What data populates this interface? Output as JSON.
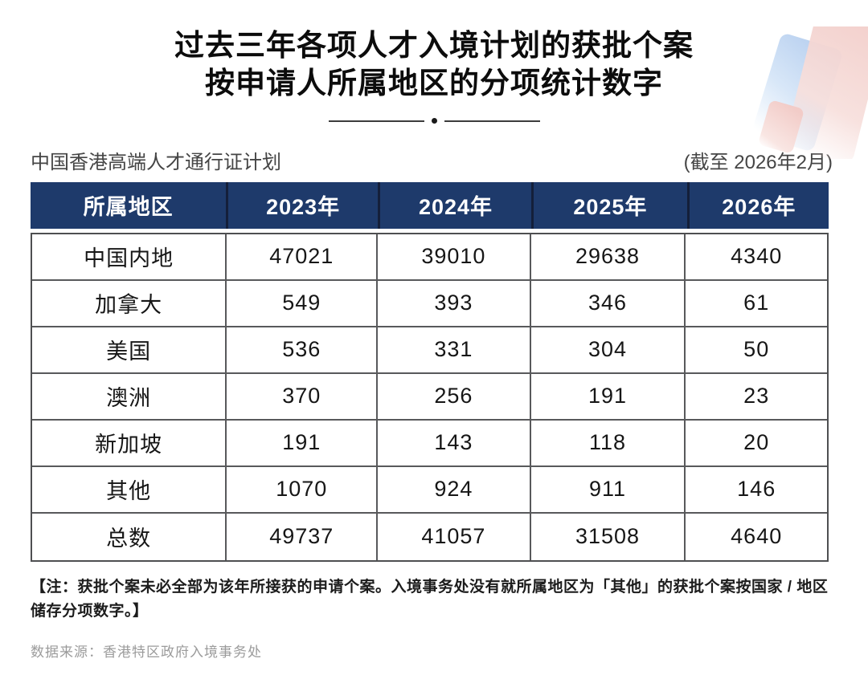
{
  "page": {
    "title_line1": "过去三年各项人才入境计划的获批个案",
    "title_line2": "按申请人所属地区的分项统计数字",
    "scheme_name": "中国香港高端人才通行证计划",
    "as_of": "(截至 2026年2月)",
    "note": "【注：获批个案未必全部为该年所接获的申请个案。入境事务处没有就所属地区为「其他」的获批个案按国家 / 地区储存分项数字。】",
    "source": "数据来源：香港特区政府入境事务处"
  },
  "colors": {
    "header_bg": "#1e3a6b",
    "header_text": "#ffffff",
    "header_separator": "#141f3a",
    "body_border": "#58595b",
    "note_text": "#1c1c1c",
    "source_text": "#9b9b9b",
    "decor_blue": "#b7cfef",
    "decor_pink": "#f2cdc9"
  },
  "chart_data": {
    "type": "table",
    "title": "过去三年各项人才入境计划的获批个案 按申请人所属地区的分项统计数字",
    "subtitle": "中国香港高端人才通行证计划 (截至 2026年2月)",
    "columns": [
      "所属地区",
      "2023年",
      "2024年",
      "2025年",
      "2026年"
    ],
    "rows": [
      {
        "region": "中国内地",
        "values": [
          47021,
          39010,
          29638,
          4340
        ]
      },
      {
        "region": "加拿大",
        "values": [
          549,
          393,
          346,
          61
        ]
      },
      {
        "region": "美国",
        "values": [
          536,
          331,
          304,
          50
        ]
      },
      {
        "region": "澳洲",
        "values": [
          370,
          256,
          191,
          23
        ]
      },
      {
        "region": "新加坡",
        "values": [
          191,
          143,
          118,
          20
        ]
      },
      {
        "region": "其他",
        "values": [
          1070,
          924,
          911,
          146
        ]
      },
      {
        "region": "总数",
        "values": [
          49737,
          41057,
          31508,
          4640
        ]
      }
    ]
  }
}
